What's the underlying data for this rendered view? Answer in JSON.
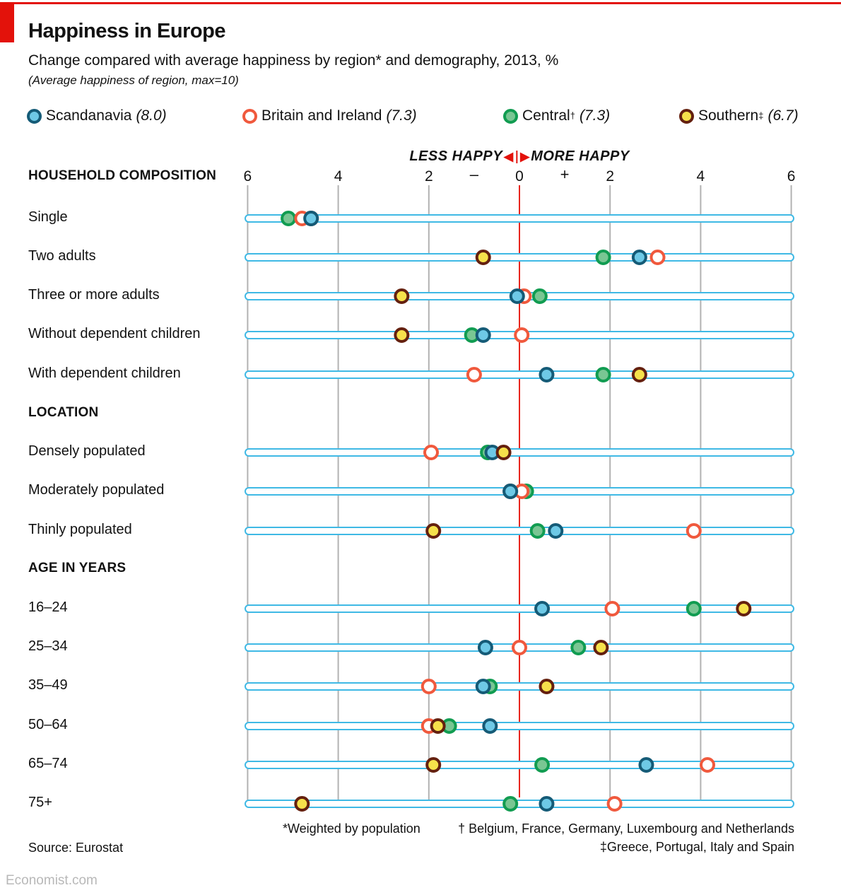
{
  "header": {
    "title": "Happiness in Europe",
    "subtitle": "Change compared with average happiness by region* and demography, 2013, %",
    "note": "(Average happiness of region, max=10)"
  },
  "legend": [
    {
      "series": "scandanavia",
      "name": "Scandanavia",
      "mark": "",
      "avg": "(8.0)"
    },
    {
      "series": "britain",
      "name": "Britain and Ireland",
      "mark": "",
      "avg": "(7.3)"
    },
    {
      "series": "central",
      "name": "Central",
      "mark": "†",
      "avg": "(7.3)"
    },
    {
      "series": "southern",
      "name": "Southern",
      "mark": "‡",
      "avg": "(6.7)"
    }
  ],
  "axis": {
    "less_label": "LESS HAPPY",
    "more_label": "MORE HAPPY",
    "minus": "–",
    "plus": "+",
    "tick_labels": [
      "6",
      "4",
      "2",
      "0",
      "2",
      "4",
      "6"
    ]
  },
  "chart_data": {
    "type": "scatter",
    "xlim": [
      -6,
      6
    ],
    "grid": true,
    "legend_position": "top",
    "series_names": [
      "scandanavia",
      "britain",
      "central",
      "southern"
    ],
    "groups": [
      {
        "header": "HOUSEHOLD COMPOSITION",
        "rows": [
          {
            "label": "Single",
            "values": {
              "scandanavia": -4.6,
              "britain": -4.8,
              "central": -5.1,
              "southern": -4.6
            },
            "order": [
              "southern",
              "central",
              "britain",
              "scandanavia"
            ]
          },
          {
            "label": "Two adults",
            "values": {
              "scandanavia": 2.65,
              "britain": 3.05,
              "central": 1.85,
              "southern": -0.8
            },
            "order": [
              "southern",
              "central",
              "scandanavia",
              "britain"
            ]
          },
          {
            "label": "Three or more adults",
            "values": {
              "scandanavia": -0.05,
              "britain": 0.1,
              "central": 0.45,
              "southern": -2.6
            },
            "order": [
              "southern",
              "central",
              "britain",
              "scandanavia"
            ]
          },
          {
            "label": "Without dependent children",
            "values": {
              "scandanavia": -0.8,
              "britain": 0.05,
              "central": -1.05,
              "southern": -2.6
            },
            "order": [
              "southern",
              "central",
              "scandanavia",
              "britain"
            ]
          },
          {
            "label": "With dependent children",
            "values": {
              "scandanavia": 0.6,
              "britain": -1.0,
              "central": 1.85,
              "southern": 2.65
            },
            "order": [
              "britain",
              "scandanavia",
              "central",
              "southern"
            ]
          }
        ]
      },
      {
        "header": "LOCATION",
        "rows": [
          {
            "label": "Densely populated",
            "values": {
              "scandanavia": -0.6,
              "britain": -1.95,
              "central": -0.7,
              "southern": -0.35
            },
            "order": [
              "britain",
              "central",
              "scandanavia",
              "southern"
            ]
          },
          {
            "label": "Moderately populated",
            "values": {
              "scandanavia": -0.2,
              "britain": 0.05,
              "central": 0.15,
              "southern": -0.2
            },
            "order": [
              "southern",
              "central",
              "britain",
              "scandanavia"
            ]
          },
          {
            "label": "Thinly populated",
            "values": {
              "scandanavia": 0.8,
              "britain": 3.85,
              "central": 0.4,
              "southern": -1.9
            },
            "order": [
              "southern",
              "central",
              "scandanavia",
              "britain"
            ]
          }
        ]
      },
      {
        "header": "AGE IN YEARS",
        "rows": [
          {
            "label": "16–24",
            "values": {
              "scandanavia": 0.5,
              "britain": 2.05,
              "central": 3.85,
              "southern": 4.95
            },
            "order": [
              "scandanavia",
              "britain",
              "central",
              "southern"
            ]
          },
          {
            "label": "25–34",
            "values": {
              "scandanavia": -0.75,
              "britain": 0.0,
              "central": 1.3,
              "southern": 1.8
            },
            "order": [
              "scandanavia",
              "britain",
              "central",
              "southern"
            ]
          },
          {
            "label": "35–49",
            "values": {
              "scandanavia": -0.8,
              "britain": -2.0,
              "central": -0.65,
              "southern": 0.6
            },
            "order": [
              "britain",
              "central",
              "scandanavia",
              "southern"
            ]
          },
          {
            "label": "50–64",
            "values": {
              "scandanavia": -0.65,
              "britain": -2.0,
              "central": -1.55,
              "southern": -1.8
            },
            "order": [
              "britain",
              "central",
              "southern",
              "scandanavia"
            ]
          },
          {
            "label": "65–74",
            "values": {
              "scandanavia": 2.8,
              "britain": 4.15,
              "central": 0.5,
              "southern": -1.9
            },
            "order": [
              "southern",
              "central",
              "scandanavia",
              "britain"
            ]
          },
          {
            "label": "75+",
            "values": {
              "scandanavia": 0.6,
              "britain": 2.1,
              "central": -0.2,
              "southern": -4.8
            },
            "order": [
              "southern",
              "central",
              "scandanavia",
              "britain"
            ]
          }
        ]
      }
    ]
  },
  "colors": {
    "accent_red": "#e3120b",
    "center_line": "#e8251d",
    "grid": "#b2b2b2",
    "track_border": "#3fb9e5",
    "series": {
      "scandanavia": {
        "fill": "#6ec9e6",
        "stroke": "#155b77"
      },
      "britain": {
        "fill": "#ffffff",
        "stroke": "#f0593d"
      },
      "central": {
        "fill": "#79c693",
        "stroke": "#119c51"
      },
      "southern": {
        "fill": "#f6e14b",
        "stroke": "#64200f"
      }
    }
  },
  "footnotes": {
    "weighted": "*Weighted by population",
    "dagger": "† Belgium, France, Germany,  Luxembourg and Netherlands",
    "ddagger": "‡Greece, Portugal, Italy and Spain",
    "source": "Source: Eurostat"
  },
  "branding": {
    "site": "Economist.com"
  }
}
